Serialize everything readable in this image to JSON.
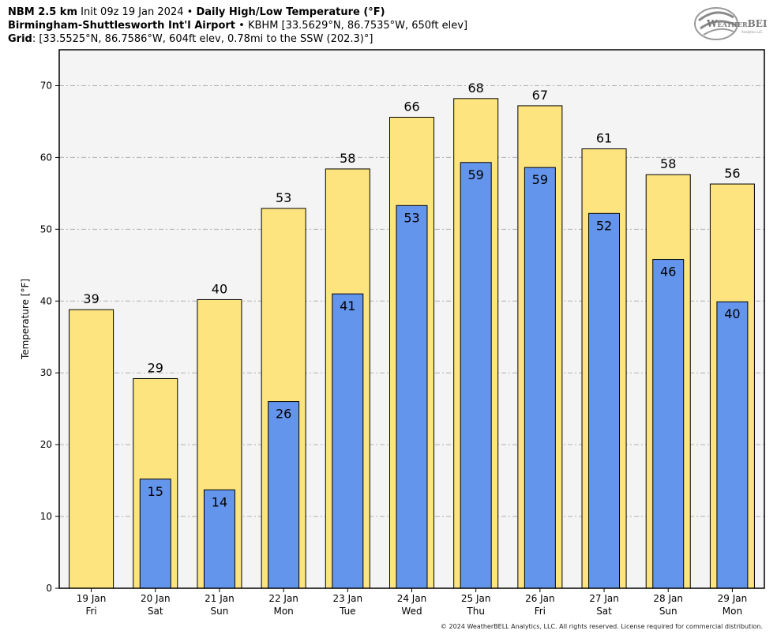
{
  "header": {
    "line1_model": "NBM 2.5 km",
    "line1_init": "Init 09z 19 Jan 2024",
    "line1_sep": "•",
    "line1_product": "Daily High/Low Temperature (°F)",
    "line2_station": "Birmingham-Shuttlesworth Int'l Airport",
    "line2_sep": "•",
    "line2_details": "KBHM [33.5629°N, 86.7535°W, 650ft elev]",
    "line3_label": "Grid",
    "line3_details": ": [33.5525°N, 86.7586°W, 604ft elev, 0.78mi to the SSW (202.3)°]"
  },
  "logo": {
    "text_a": "W",
    "text_b": "EATHER",
    "text_c": "BELL",
    "subtext": "Analytics LLC"
  },
  "copyright": "© 2024 WeatherBELL Analytics, LLC. All rights reserved. License required for commercial distribution.",
  "colors": {
    "high": "#fde47f",
    "low": "#6495ed",
    "plot_bg": "#f4f4f4",
    "grid": "#b0b0b0"
  },
  "chart_data": {
    "type": "bar",
    "categories": [
      [
        "19 Jan",
        "Fri"
      ],
      [
        "20 Jan",
        "Sat"
      ],
      [
        "21 Jan",
        "Sun"
      ],
      [
        "22 Jan",
        "Mon"
      ],
      [
        "23 Jan",
        "Tue"
      ],
      [
        "24 Jan",
        "Wed"
      ],
      [
        "25 Jan",
        "Thu"
      ],
      [
        "26 Jan",
        "Fri"
      ],
      [
        "27 Jan",
        "Sat"
      ],
      [
        "28 Jan",
        "Sun"
      ],
      [
        "29 Jan",
        "Mon"
      ]
    ],
    "series": [
      {
        "values": [
          38.8,
          29.2,
          40.2,
          52.9,
          58.4,
          65.6,
          68.2,
          67.2,
          61.2,
          57.6,
          56.3
        ],
        "labels": [
          "39",
          "29",
          "40",
          "53",
          "58",
          "66",
          "68",
          "67",
          "61",
          "58",
          "56"
        ]
      },
      {
        "values": [
          null,
          15.2,
          13.7,
          26.0,
          41.0,
          53.3,
          59.3,
          58.6,
          52.2,
          45.8,
          39.9
        ],
        "labels": [
          "",
          "15",
          "14",
          "26",
          "41",
          "53",
          "59",
          "59",
          "52",
          "46",
          "40"
        ]
      }
    ],
    "ylabel": "Temperature [°F]",
    "ylim": [
      0,
      75
    ],
    "yticks": [
      0,
      10,
      20,
      30,
      40,
      50,
      60,
      70
    ],
    "grid": true
  }
}
